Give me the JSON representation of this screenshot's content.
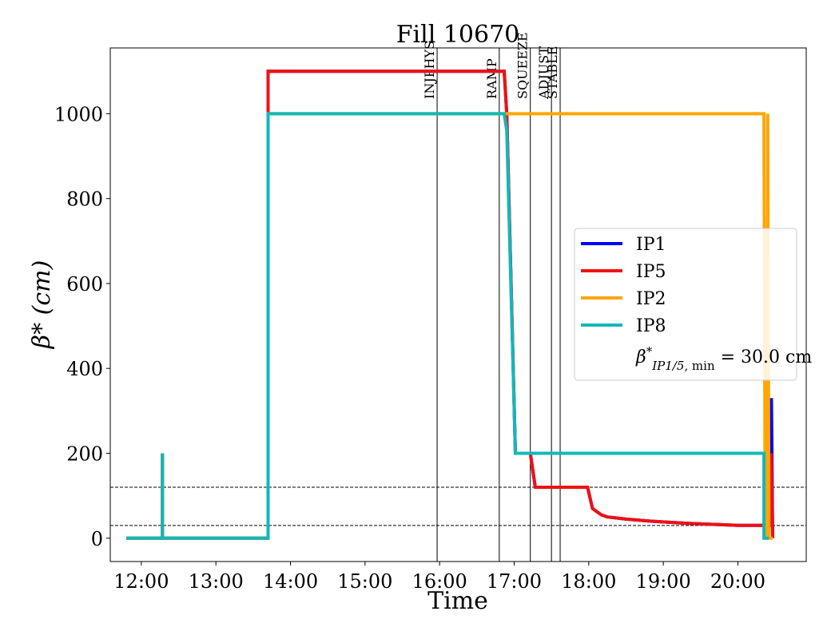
{
  "chart_data": {
    "type": "line",
    "title": "Fill 10670",
    "xlabel": "Time",
    "ylabel": "β* (cm)",
    "xlim": [
      "11:35",
      "20:55"
    ],
    "ylim": [
      -55,
      1155
    ],
    "x_ticks": [
      "12:00",
      "13:00",
      "14:00",
      "15:00",
      "16:00",
      "17:00",
      "18:00",
      "19:00",
      "20:00"
    ],
    "y_ticks": [
      0,
      200,
      400,
      600,
      800,
      1000
    ],
    "grid": false,
    "legend": {
      "position": "center-right",
      "extra_entry": "β*_{IP1/5, min} = 30.0 cm"
    },
    "phase_markers": [
      {
        "label": "INJPHYS",
        "x": "15:58"
      },
      {
        "label": "RAMP",
        "x": "16:48"
      },
      {
        "label": "SQUEEZE",
        "x": "17:13"
      },
      {
        "label": "ADJUST",
        "x": "17:30"
      },
      {
        "label": "STABLE",
        "x": "17:37"
      }
    ],
    "reference_lines": [
      {
        "y": 120,
        "style": "dashed"
      },
      {
        "y": 30,
        "style": "dashed"
      }
    ],
    "series": [
      {
        "name": "IP1",
        "color": "#0000ff",
        "points": [
          [
            "11:48",
            0
          ],
          [
            "12:17",
            0
          ],
          [
            "12:17",
            200
          ],
          [
            "12:17",
            0
          ],
          [
            "13:42",
            0
          ],
          [
            "13:42",
            1100
          ],
          [
            "16:52",
            1100
          ],
          [
            "16:54",
            1000
          ],
          [
            "17:01",
            200
          ],
          [
            "17:13",
            200
          ],
          [
            "17:17",
            120
          ],
          [
            "17:59",
            120
          ],
          [
            "18:03",
            70
          ],
          [
            "18:10",
            55
          ],
          [
            "18:15",
            50
          ],
          [
            "18:30",
            45
          ],
          [
            "18:50",
            40
          ],
          [
            "19:20",
            35
          ],
          [
            "19:45",
            32
          ],
          [
            "20:00",
            30
          ],
          [
            "20:27",
            30
          ],
          [
            "20:27",
            330
          ],
          [
            "20:28",
            0
          ]
        ]
      },
      {
        "name": "IP5",
        "color": "#ee1111",
        "points": [
          [
            "11:48",
            0
          ],
          [
            "12:17",
            0
          ],
          [
            "12:17",
            200
          ],
          [
            "12:17",
            0
          ],
          [
            "13:42",
            0
          ],
          [
            "13:42",
            1100
          ],
          [
            "16:52",
            1100
          ],
          [
            "16:54",
            1000
          ],
          [
            "17:01",
            200
          ],
          [
            "17:13",
            200
          ],
          [
            "17:17",
            120
          ],
          [
            "17:59",
            120
          ],
          [
            "18:03",
            70
          ],
          [
            "18:10",
            55
          ],
          [
            "18:15",
            50
          ],
          [
            "18:30",
            45
          ],
          [
            "18:50",
            40
          ],
          [
            "19:20",
            35
          ],
          [
            "19:45",
            32
          ],
          [
            "20:00",
            30
          ],
          [
            "20:27",
            30
          ],
          [
            "20:27",
            200
          ],
          [
            "20:28",
            0
          ]
        ]
      },
      {
        "name": "IP2",
        "color": "#ffa500",
        "points": [
          [
            "11:48",
            0
          ],
          [
            "12:17",
            0
          ],
          [
            "12:17",
            200
          ],
          [
            "12:17",
            0
          ],
          [
            "13:42",
            0
          ],
          [
            "13:42",
            1000
          ],
          [
            "20:21",
            1000
          ],
          [
            "20:22",
            0
          ],
          [
            "20:24",
            0
          ],
          [
            "20:24",
            1000
          ],
          [
            "20:25",
            0
          ],
          [
            "20:28",
            0
          ]
        ]
      },
      {
        "name": "IP8",
        "color": "#12b8b8",
        "points": [
          [
            "11:48",
            0
          ],
          [
            "12:17",
            0
          ],
          [
            "12:17",
            200
          ],
          [
            "12:17",
            0
          ],
          [
            "13:42",
            0
          ],
          [
            "13:42",
            1000
          ],
          [
            "16:52",
            1000
          ],
          [
            "16:54",
            960
          ],
          [
            "17:01",
            200
          ],
          [
            "20:21",
            200
          ],
          [
            "20:21",
            0
          ],
          [
            "20:25",
            0
          ]
        ]
      }
    ]
  }
}
